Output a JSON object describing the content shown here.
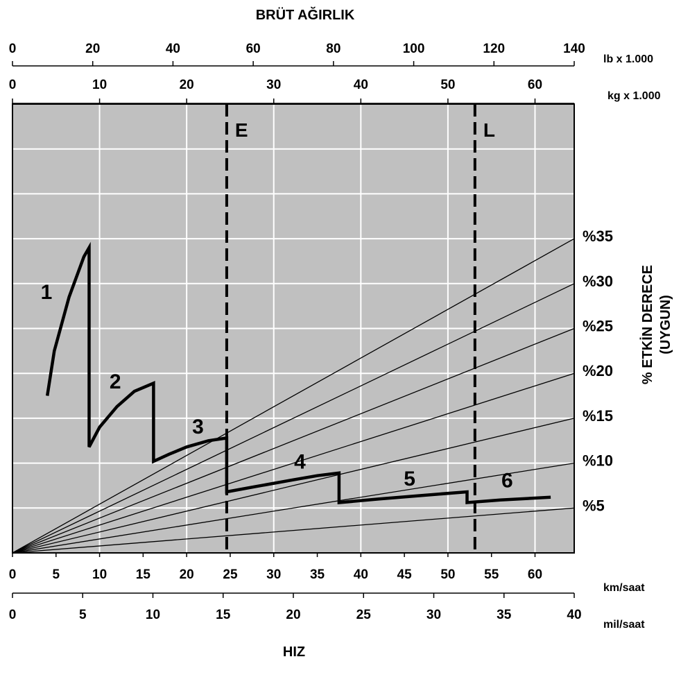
{
  "chart_data": {
    "type": "line",
    "title": "BRÜT AĞIRLIK",
    "xlabel": "HIZ",
    "ylabel": "% ETKİN DERECE (UYGUN)",
    "axes": {
      "top_lb": {
        "unit": "lb x 1.000",
        "min": 0,
        "max": 140,
        "ticks": [
          0,
          20,
          40,
          60,
          80,
          100,
          120,
          140
        ]
      },
      "top_kg": {
        "unit": "kg x 1.000",
        "min": 0,
        "max": 64.5,
        "ticks": [
          0,
          10,
          20,
          30,
          40,
          50,
          60
        ]
      },
      "bottom_kmh": {
        "unit": "km/saat",
        "min": 0,
        "max": 64.5,
        "ticks": [
          0,
          5,
          10,
          15,
          20,
          25,
          30,
          35,
          40,
          45,
          50,
          55,
          60
        ]
      },
      "bottom_mph": {
        "unit": "mil/saat",
        "min": 0,
        "max": 40,
        "ticks": [
          0,
          5,
          10,
          15,
          20,
          25,
          30,
          35,
          40
        ]
      }
    },
    "grade_lines": [
      {
        "label": "%35",
        "end_value": 35
      },
      {
        "label": "%30",
        "end_value": 30
      },
      {
        "label": "%25",
        "end_value": 25
      },
      {
        "label": "%20",
        "end_value": 20
      },
      {
        "label": "%15",
        "end_value": 15
      },
      {
        "label": "%10",
        "end_value": 10
      },
      {
        "label": "%5",
        "end_value": 5
      }
    ],
    "reference_lines": [
      {
        "label": "E",
        "x_kmh": 24.6
      },
      {
        "label": "L",
        "x_kmh": 53.1
      }
    ],
    "gear_labels": [
      "1",
      "2",
      "3",
      "4",
      "5",
      "6"
    ],
    "rimpull_curve_kmh_vs_grade": [
      [
        4,
        17.5
      ],
      [
        4.8,
        22.5
      ],
      [
        6.5,
        28.5
      ],
      [
        8.2,
        33
      ],
      [
        8.8,
        34
      ],
      [
        8.8,
        11.8
      ],
      [
        10,
        14
      ],
      [
        12,
        16.3
      ],
      [
        14,
        18
      ],
      [
        16.2,
        18.9
      ],
      [
        16.2,
        10.2
      ],
      [
        18,
        11
      ],
      [
        20,
        11.8
      ],
      [
        22.5,
        12.5
      ],
      [
        24.6,
        12.8
      ],
      [
        24.6,
        6.8
      ],
      [
        28,
        7.4
      ],
      [
        32,
        8.1
      ],
      [
        35,
        8.6
      ],
      [
        37.5,
        8.9
      ],
      [
        37.5,
        5.6
      ],
      [
        42,
        6
      ],
      [
        47,
        6.4
      ],
      [
        52.2,
        6.8
      ],
      [
        52.2,
        5.6
      ],
      [
        56,
        5.9
      ],
      [
        61.8,
        6.2
      ]
    ]
  }
}
